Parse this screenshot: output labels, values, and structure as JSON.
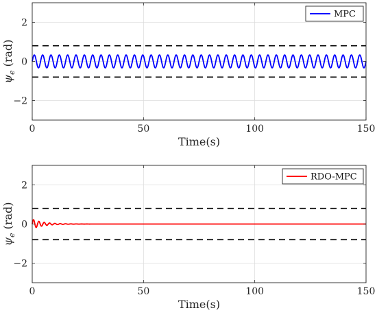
{
  "chart_data": [
    {
      "type": "line",
      "xlabel": "Time(s)",
      "ylabel_sym": "ψ",
      "ylabel_sub": "e",
      "ylabel_unit": "(rad)",
      "xlim": [
        0,
        150
      ],
      "ylim": [
        -3,
        3
      ],
      "xticks": [
        0,
        50,
        100,
        150
      ],
      "yticks": [
        -2,
        0,
        2
      ],
      "grid": true,
      "legend_position": "top-right",
      "bounds": {
        "upper": 0.8,
        "lower": -0.8,
        "style": "dashed",
        "color": "#000000"
      },
      "series": [
        {
          "name": "MPC",
          "color": "#0000ff",
          "description": "sustained oscillation",
          "amplitude": 0.33,
          "period": 3.75,
          "decay": 0,
          "x_range": [
            0,
            150
          ]
        }
      ]
    },
    {
      "type": "line",
      "xlabel": "Time(s)",
      "ylabel_sym": "ψ",
      "ylabel_sub": "e",
      "ylabel_unit": "(rad)",
      "xlim": [
        0,
        150
      ],
      "ylim": [
        -3,
        3
      ],
      "xticks": [
        0,
        50,
        100,
        150
      ],
      "yticks": [
        -2,
        0,
        2
      ],
      "grid": true,
      "legend_position": "top-right",
      "bounds": {
        "upper": 0.8,
        "lower": -0.8,
        "style": "dashed",
        "color": "#000000"
      },
      "series": [
        {
          "name": "RDO-MPC",
          "color": "#ff0000",
          "description": "damped oscillation decaying to zero",
          "amplitude": 0.25,
          "period": 2.4,
          "decay": 0.2,
          "x_range": [
            0,
            150
          ]
        }
      ]
    }
  ]
}
